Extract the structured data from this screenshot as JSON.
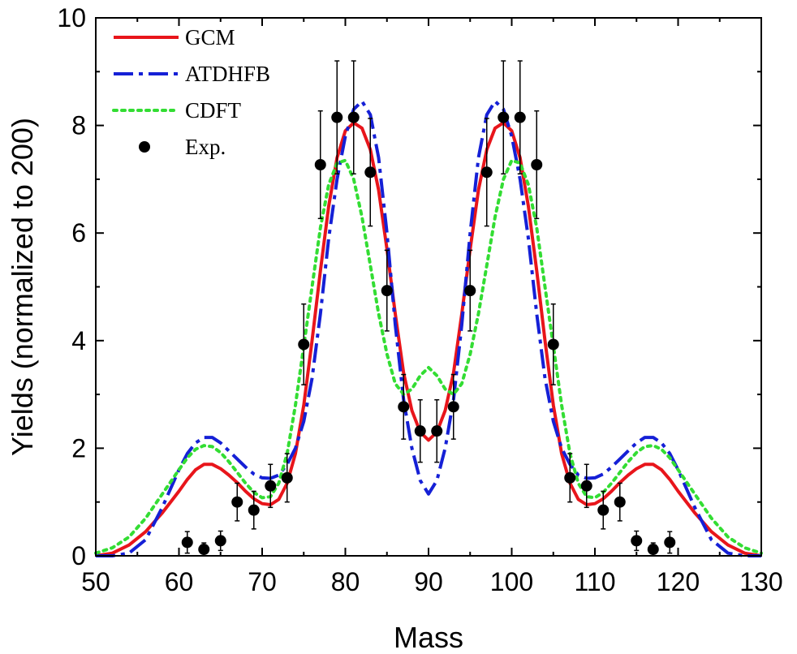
{
  "chart_data": {
    "type": "line",
    "title": "",
    "xlabel": "Mass",
    "ylabel": "Yields (normalized to 200)",
    "xlim": [
      50,
      130
    ],
    "ylim": [
      0,
      10
    ],
    "xticks": [
      50,
      60,
      70,
      80,
      90,
      100,
      110,
      120,
      130
    ],
    "yticks": [
      0,
      2,
      4,
      6,
      8,
      10
    ],
    "grid": false,
    "legend": "top-left",
    "series": [
      {
        "name": "GCM",
        "style": "solid",
        "color": "#e8151b",
        "x": [
          50,
          52,
          54,
          56,
          58,
          60,
          61,
          62,
          63,
          64,
          65,
          66,
          67,
          68,
          69,
          70,
          71,
          72,
          73,
          74,
          75,
          76,
          77,
          78,
          79,
          80,
          81,
          82,
          83,
          84,
          85,
          86,
          87,
          88,
          89,
          90,
          91,
          92,
          93,
          94,
          95,
          96,
          97,
          98,
          99,
          100,
          101,
          102,
          103,
          104,
          105,
          106,
          107,
          108,
          109,
          110,
          111,
          112,
          113,
          114,
          115,
          116,
          117,
          118,
          119,
          120,
          122,
          124,
          126,
          128,
          130
        ],
        "y": [
          0.0,
          0.05,
          0.2,
          0.45,
          0.8,
          1.2,
          1.42,
          1.6,
          1.7,
          1.7,
          1.62,
          1.5,
          1.36,
          1.2,
          1.06,
          0.97,
          0.95,
          1.05,
          1.35,
          1.9,
          2.8,
          4.0,
          5.3,
          6.5,
          7.4,
          7.9,
          8.05,
          7.95,
          7.55,
          6.8,
          5.7,
          4.5,
          3.4,
          2.7,
          2.3,
          2.15,
          2.3,
          2.7,
          3.4,
          4.5,
          5.7,
          6.8,
          7.55,
          7.95,
          8.05,
          7.9,
          7.4,
          6.5,
          5.3,
          4.0,
          2.8,
          1.9,
          1.35,
          1.05,
          0.95,
          0.97,
          1.06,
          1.2,
          1.36,
          1.5,
          1.62,
          1.7,
          1.7,
          1.6,
          1.42,
          1.2,
          0.8,
          0.45,
          0.2,
          0.05,
          0.0
        ]
      },
      {
        "name": "ATDHFB",
        "style": "dashdot",
        "color": "#1520d6",
        "x": [
          50,
          52,
          54,
          56,
          58,
          60,
          61,
          62,
          63,
          64,
          65,
          66,
          67,
          68,
          69,
          70,
          71,
          72,
          73,
          74,
          75,
          76,
          77,
          78,
          79,
          80,
          81,
          82,
          83,
          84,
          85,
          86,
          87,
          88,
          89,
          90,
          91,
          92,
          93,
          94,
          95,
          96,
          97,
          98,
          99,
          100,
          101,
          102,
          103,
          104,
          105,
          106,
          107,
          108,
          109,
          110,
          111,
          112,
          113,
          114,
          115,
          116,
          117,
          118,
          119,
          120,
          122,
          124,
          126,
          128,
          130
        ],
        "y": [
          0.0,
          0.0,
          0.05,
          0.3,
          0.9,
          1.6,
          1.9,
          2.1,
          2.2,
          2.2,
          2.1,
          1.95,
          1.8,
          1.65,
          1.52,
          1.45,
          1.44,
          1.5,
          1.7,
          2.0,
          2.5,
          3.3,
          4.5,
          5.9,
          7.0,
          7.8,
          8.3,
          8.45,
          8.2,
          7.4,
          6.0,
          4.3,
          2.9,
          2.0,
          1.4,
          1.15,
          1.4,
          2.0,
          2.9,
          4.3,
          6.0,
          7.4,
          8.2,
          8.45,
          8.3,
          7.8,
          7.0,
          5.9,
          4.5,
          3.3,
          2.5,
          2.0,
          1.7,
          1.5,
          1.44,
          1.45,
          1.52,
          1.65,
          1.8,
          1.95,
          2.1,
          2.2,
          2.2,
          2.1,
          1.9,
          1.6,
          0.9,
          0.3,
          0.05,
          0.0,
          0.0
        ]
      },
      {
        "name": "CDFT",
        "style": "dotted",
        "color": "#33dd33",
        "x": [
          50,
          52,
          54,
          56,
          58,
          60,
          61,
          62,
          63,
          64,
          65,
          66,
          67,
          68,
          69,
          70,
          71,
          72,
          73,
          74,
          75,
          76,
          77,
          78,
          79,
          80,
          81,
          82,
          83,
          84,
          85,
          86,
          87,
          88,
          89,
          90,
          91,
          92,
          93,
          94,
          95,
          96,
          97,
          98,
          99,
          100,
          101,
          102,
          103,
          104,
          105,
          106,
          107,
          108,
          109,
          110,
          111,
          112,
          113,
          114,
          115,
          116,
          117,
          118,
          119,
          120,
          122,
          124,
          126,
          128,
          130
        ],
        "y": [
          0.05,
          0.15,
          0.35,
          0.7,
          1.15,
          1.6,
          1.82,
          1.98,
          2.05,
          2.03,
          1.92,
          1.75,
          1.55,
          1.35,
          1.18,
          1.08,
          1.1,
          1.35,
          1.9,
          2.8,
          3.9,
          5.0,
          6.1,
          6.9,
          7.3,
          7.35,
          7.0,
          6.3,
          5.4,
          4.5,
          3.75,
          3.2,
          3.0,
          3.1,
          3.35,
          3.5,
          3.35,
          3.1,
          3.0,
          3.2,
          3.75,
          4.5,
          5.4,
          6.3,
          7.0,
          7.35,
          7.3,
          6.9,
          6.1,
          5.0,
          3.9,
          2.8,
          1.9,
          1.35,
          1.1,
          1.08,
          1.18,
          1.35,
          1.55,
          1.75,
          1.92,
          2.03,
          2.05,
          1.98,
          1.82,
          1.6,
          1.15,
          0.7,
          0.35,
          0.15,
          0.05
        ]
      }
    ],
    "points": {
      "name": "Exp.",
      "color": "#000000",
      "x": [
        61,
        63,
        65,
        67,
        69,
        71,
        73,
        75,
        77,
        79,
        81,
        83,
        85,
        87,
        89,
        91,
        93,
        95,
        97,
        99,
        101,
        103,
        105,
        107,
        109,
        111,
        113,
        115,
        117,
        119
      ],
      "y": [
        0.25,
        0.12,
        0.28,
        1.0,
        0.85,
        1.3,
        1.45,
        3.93,
        7.27,
        8.15,
        8.15,
        7.13,
        4.93,
        2.77,
        2.32,
        2.32,
        2.77,
        4.93,
        7.13,
        8.15,
        8.15,
        7.27,
        3.93,
        1.45,
        1.3,
        0.85,
        1.0,
        0.28,
        0.12,
        0.25
      ],
      "err": [
        0.2,
        0.12,
        0.18,
        0.35,
        0.35,
        0.4,
        0.45,
        0.75,
        1.0,
        1.05,
        1.05,
        1.0,
        0.75,
        0.6,
        0.58,
        0.58,
        0.6,
        0.75,
        1.0,
        1.05,
        1.05,
        1.0,
        0.75,
        0.45,
        0.4,
        0.35,
        0.35,
        0.18,
        0.12,
        0.2
      ]
    }
  }
}
